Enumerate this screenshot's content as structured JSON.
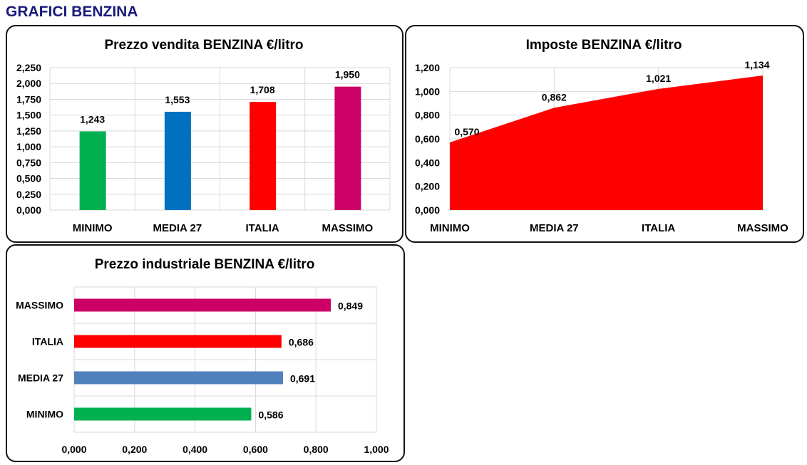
{
  "page_title": "GRAFICI BENZINA",
  "chart_data": [
    {
      "type": "bar",
      "title": "Prezzo vendita BENZINA €/litro",
      "categories": [
        "MINIMO",
        "MEDIA 27",
        "ITALIA",
        "MASSIMO"
      ],
      "values": [
        1.243,
        1.553,
        1.708,
        1.95
      ],
      "labels": [
        "1,243",
        "1,553",
        "1,708",
        "1,950"
      ],
      "colors": [
        "#00b050",
        "#0070c0",
        "#ff0000",
        "#cc0066"
      ],
      "ylim": [
        0,
        2.25
      ],
      "yticks": [
        "0,000",
        "0,250",
        "0,500",
        "0,750",
        "1,000",
        "1,250",
        "1,500",
        "1,750",
        "2,000",
        "2,250"
      ],
      "grid": true
    },
    {
      "type": "area",
      "title": "Imposte BENZINA €/litro",
      "categories": [
        "MINIMO",
        "MEDIA 27",
        "ITALIA",
        "MASSIMO"
      ],
      "values": [
        0.57,
        0.862,
        1.021,
        1.134
      ],
      "labels": [
        "0,570",
        "0,862",
        "1,021",
        "1,134"
      ],
      "color": "#ff0000",
      "ylim": [
        0,
        1.2
      ],
      "yticks": [
        "0,000",
        "0,200",
        "0,400",
        "0,600",
        "0,800",
        "1,000",
        "1,200"
      ],
      "grid": true
    },
    {
      "type": "bar-horizontal",
      "title": "Prezzo industriale BENZINA €/litro",
      "categories": [
        "MINIMO",
        "MEDIA 27",
        "ITALIA",
        "MASSIMO"
      ],
      "values": [
        0.586,
        0.691,
        0.686,
        0.849
      ],
      "labels": [
        "0,586",
        "0,691",
        "0,686",
        "0,849"
      ],
      "colors": [
        "#00b050",
        "#4f81bd",
        "#ff0000",
        "#cc0066"
      ],
      "xlim": [
        0,
        1
      ],
      "xticks": [
        "0,000",
        "0,200",
        "0,400",
        "0,600",
        "0,800",
        "1,000"
      ],
      "grid": true
    }
  ]
}
